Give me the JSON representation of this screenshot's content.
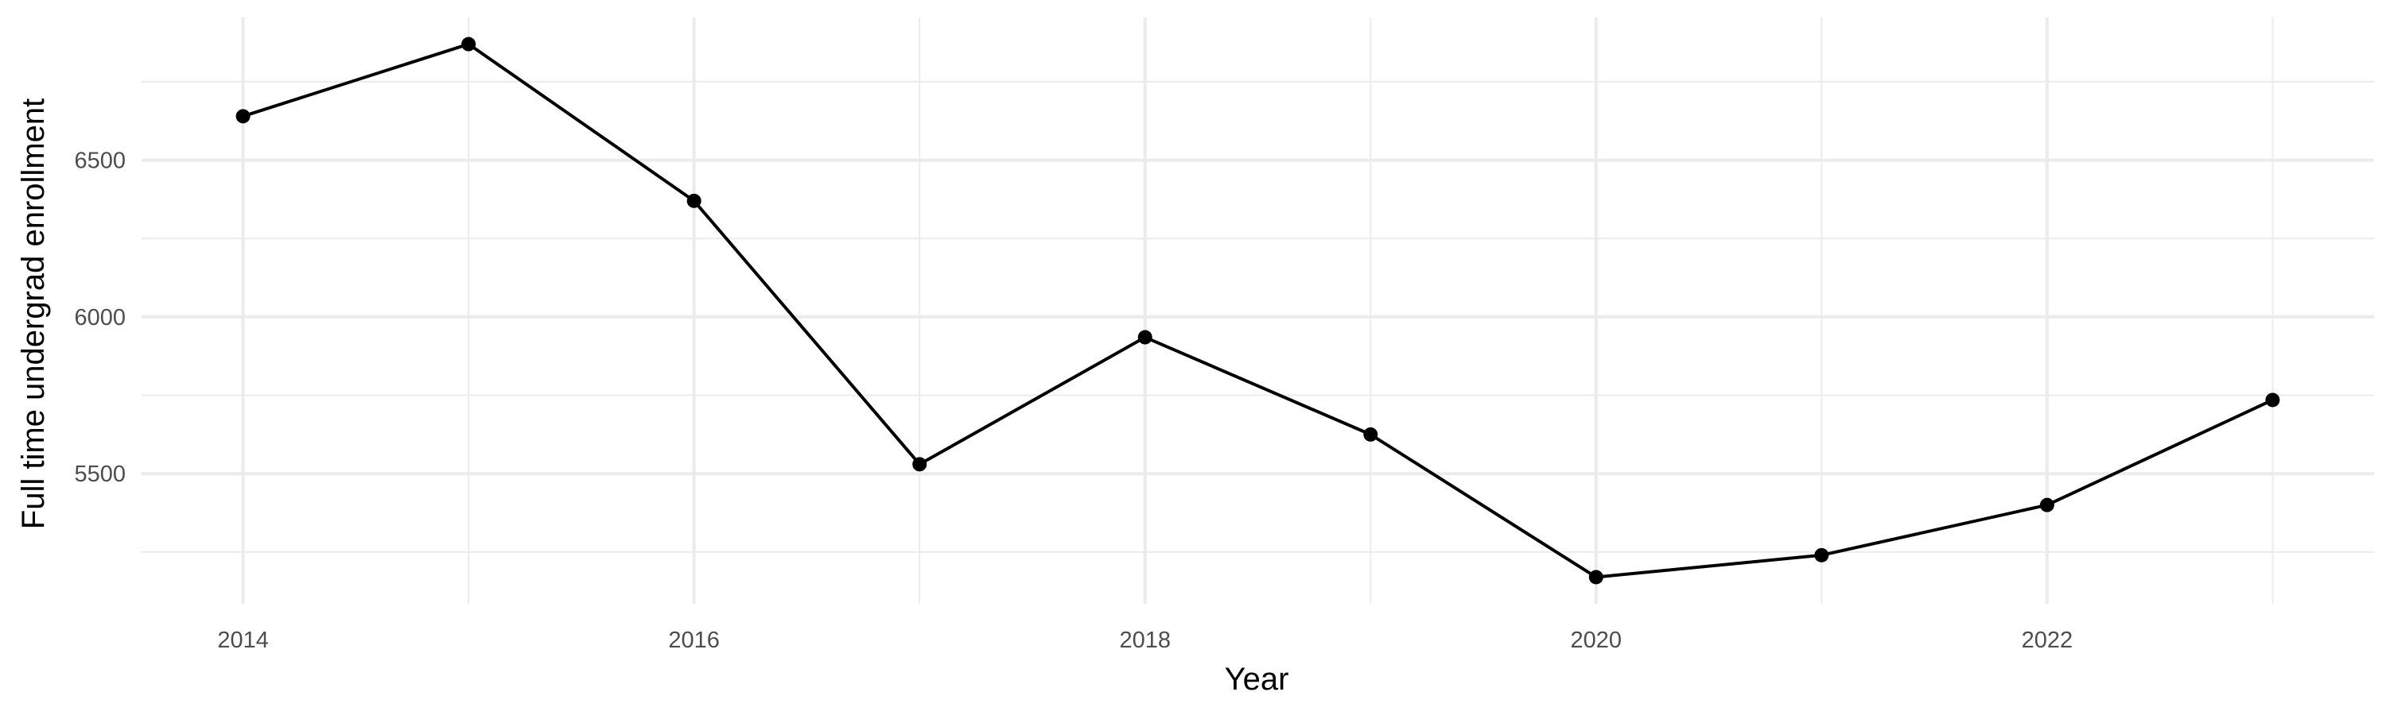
{
  "chart_data": {
    "type": "line",
    "title": "",
    "xlabel": "Year",
    "ylabel": "Full time undergrad enrollment",
    "x": [
      2014,
      2015,
      2016,
      2017,
      2018,
      2019,
      2020,
      2021,
      2022,
      2023
    ],
    "series": [
      {
        "values": [
          6640,
          6870,
          6370,
          5530,
          5935,
          5625,
          5170,
          5240,
          5400,
          5735
        ]
      }
    ],
    "xlim": [
      2013.55,
      2023.45
    ],
    "ylim": [
      5085,
      6955
    ],
    "x_ticks": [
      2014,
      2016,
      2018,
      2020,
      2022
    ],
    "x_tick_labels": [
      "2014",
      "2016",
      "2018",
      "2020",
      "2022"
    ],
    "y_ticks": [
      5500,
      6000,
      6500
    ],
    "y_tick_labels": [
      "5500",
      "6000",
      "6500"
    ],
    "grid": true,
    "legend": "none",
    "colors": {
      "line": "#000000",
      "point": "#000000",
      "grid": "#ebebeb"
    }
  }
}
